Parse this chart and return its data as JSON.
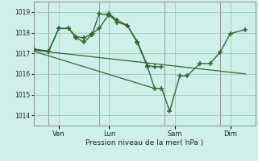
{
  "bg_color": "#cff0ea",
  "line_color": "#2d6a2d",
  "grid_color": "#99ccbb",
  "xlabel": "Pression niveau de la mer( hPa )",
  "ylim": [
    1013.5,
    1019.5
  ],
  "yticks": [
    1014,
    1015,
    1016,
    1017,
    1018,
    1019
  ],
  "xlim": [
    0,
    22
  ],
  "xtick_positions": [
    2.5,
    7.5,
    14.0,
    19.5
  ],
  "xtick_labels": [
    "Ven",
    "Lun",
    "Sam",
    "Dim"
  ],
  "vline_positions": [
    1.5,
    6.5,
    13.0,
    18.5
  ],
  "series1_x": [
    0.0,
    1.5,
    2.5,
    3.5,
    4.2,
    5.0,
    5.8,
    6.5,
    7.5,
    8.3,
    9.3,
    10.3,
    11.3,
    12.0,
    12.7
  ],
  "series1_y": [
    1017.2,
    1017.1,
    1018.2,
    1018.2,
    1017.8,
    1017.75,
    1017.95,
    1018.2,
    1018.9,
    1018.6,
    1018.35,
    1017.55,
    1016.4,
    1016.35,
    1016.35
  ],
  "series2_x": [
    0.0,
    1.5,
    2.5,
    3.5,
    4.2,
    5.0,
    5.8,
    6.5,
    7.5,
    8.3,
    9.3,
    10.3,
    11.3,
    12.0,
    12.7,
    13.5,
    14.5,
    15.2,
    16.5,
    17.5,
    18.5,
    19.5,
    21.0
  ],
  "series2_y": [
    1017.2,
    1017.1,
    1018.2,
    1018.2,
    1017.75,
    1017.55,
    1017.9,
    1018.9,
    1018.85,
    1018.5,
    1018.35,
    1017.5,
    1016.35,
    1015.3,
    1015.3,
    1014.2,
    1015.9,
    1015.9,
    1016.5,
    1016.5,
    1017.05,
    1017.95,
    1018.15
  ],
  "series3_x": [
    0.0,
    21.0
  ],
  "series3_y": [
    1017.15,
    1016.0
  ],
  "series4_x": [
    0.0,
    12.0
  ],
  "series4_y": [
    1017.1,
    1015.3
  ]
}
